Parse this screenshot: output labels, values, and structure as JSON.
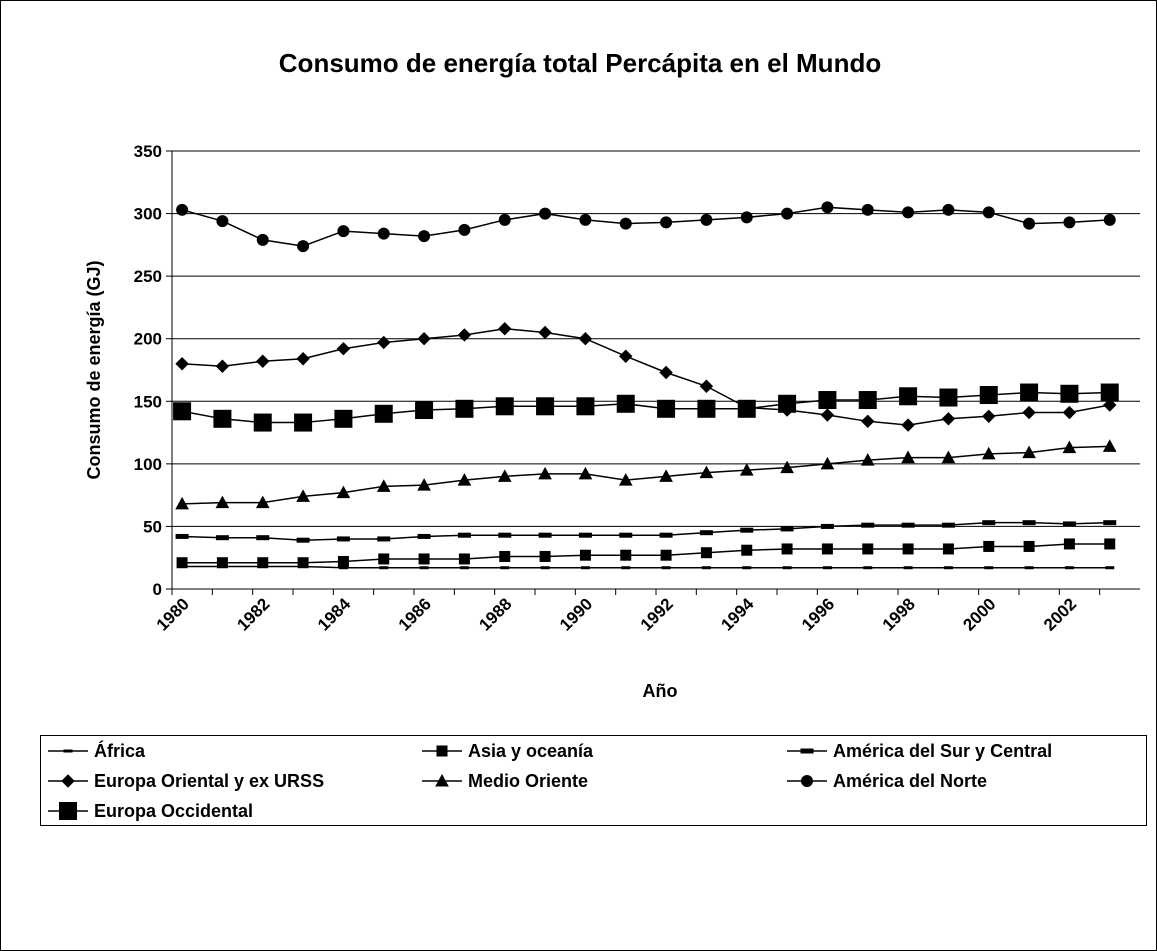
{
  "chart_data": {
    "type": "line",
    "title": "Consumo de energía total Percápita en el Mundo",
    "x_label": "Año",
    "y_label": "Consumo de energía (GJ)",
    "categories": [
      "1980",
      null,
      "1982",
      null,
      "1984",
      null,
      "1986",
      null,
      "1988",
      null,
      "1990",
      null,
      "1992",
      null,
      "1994",
      null,
      "1996",
      null,
      "1998",
      null,
      "2000",
      null,
      "2002",
      null
    ],
    "ylim": [
      0,
      350
    ],
    "yticks": [
      0,
      50,
      100,
      150,
      200,
      250,
      300,
      350
    ],
    "grid": true,
    "series": [
      {
        "name": "África",
        "color": "#000000",
        "marker": "dash",
        "values": [
          18,
          18,
          18,
          18,
          17,
          17,
          17,
          17,
          17,
          17,
          17,
          17,
          17,
          17,
          17,
          17,
          17,
          17,
          17,
          17,
          17,
          17,
          17,
          17
        ]
      },
      {
        "name": "Asia y oceanía",
        "color": "#000000",
        "marker": "square",
        "values": [
          21,
          21,
          21,
          21,
          22,
          24,
          24,
          24,
          26,
          26,
          27,
          27,
          27,
          29,
          31,
          32,
          32,
          32,
          32,
          32,
          34,
          34,
          36,
          36
        ]
      },
      {
        "name": "América del Sur y Central",
        "color": "#000000",
        "marker": "bar",
        "values": [
          42,
          41,
          41,
          39,
          40,
          40,
          42,
          43,
          43,
          43,
          43,
          43,
          43,
          45,
          47,
          48,
          50,
          51,
          51,
          51,
          53,
          53,
          52,
          53
        ]
      },
      {
        "name": "Europa Oriental y ex URSS",
        "color": "#000000",
        "marker": "diamond",
        "values": [
          180,
          178,
          182,
          184,
          192,
          197,
          200,
          203,
          208,
          205,
          200,
          186,
          173,
          162,
          145,
          143,
          139,
          134,
          131,
          136,
          138,
          141,
          141,
          147
        ]
      },
      {
        "name": "Medio Oriente",
        "color": "#000000",
        "marker": "triangle",
        "values": [
          68,
          69,
          69,
          74,
          77,
          82,
          83,
          87,
          90,
          92,
          92,
          87,
          90,
          93,
          95,
          97,
          100,
          103,
          105,
          105,
          108,
          109,
          113,
          114
        ]
      },
      {
        "name": "América del Norte",
        "color": "#000000",
        "marker": "circle",
        "values": [
          303,
          294,
          279,
          274,
          286,
          284,
          282,
          287,
          295,
          300,
          295,
          292,
          293,
          295,
          297,
          300,
          305,
          303,
          301,
          303,
          301,
          292,
          293,
          295
        ]
      },
      {
        "name": "Europa Occidental",
        "color": "#000000",
        "marker": "bigsquare",
        "values": [
          142,
          136,
          133,
          133,
          136,
          140,
          143,
          144,
          146,
          146,
          146,
          148,
          144,
          144,
          144,
          148,
          151,
          151,
          154,
          153,
          155,
          157,
          156,
          157
        ]
      }
    ]
  }
}
